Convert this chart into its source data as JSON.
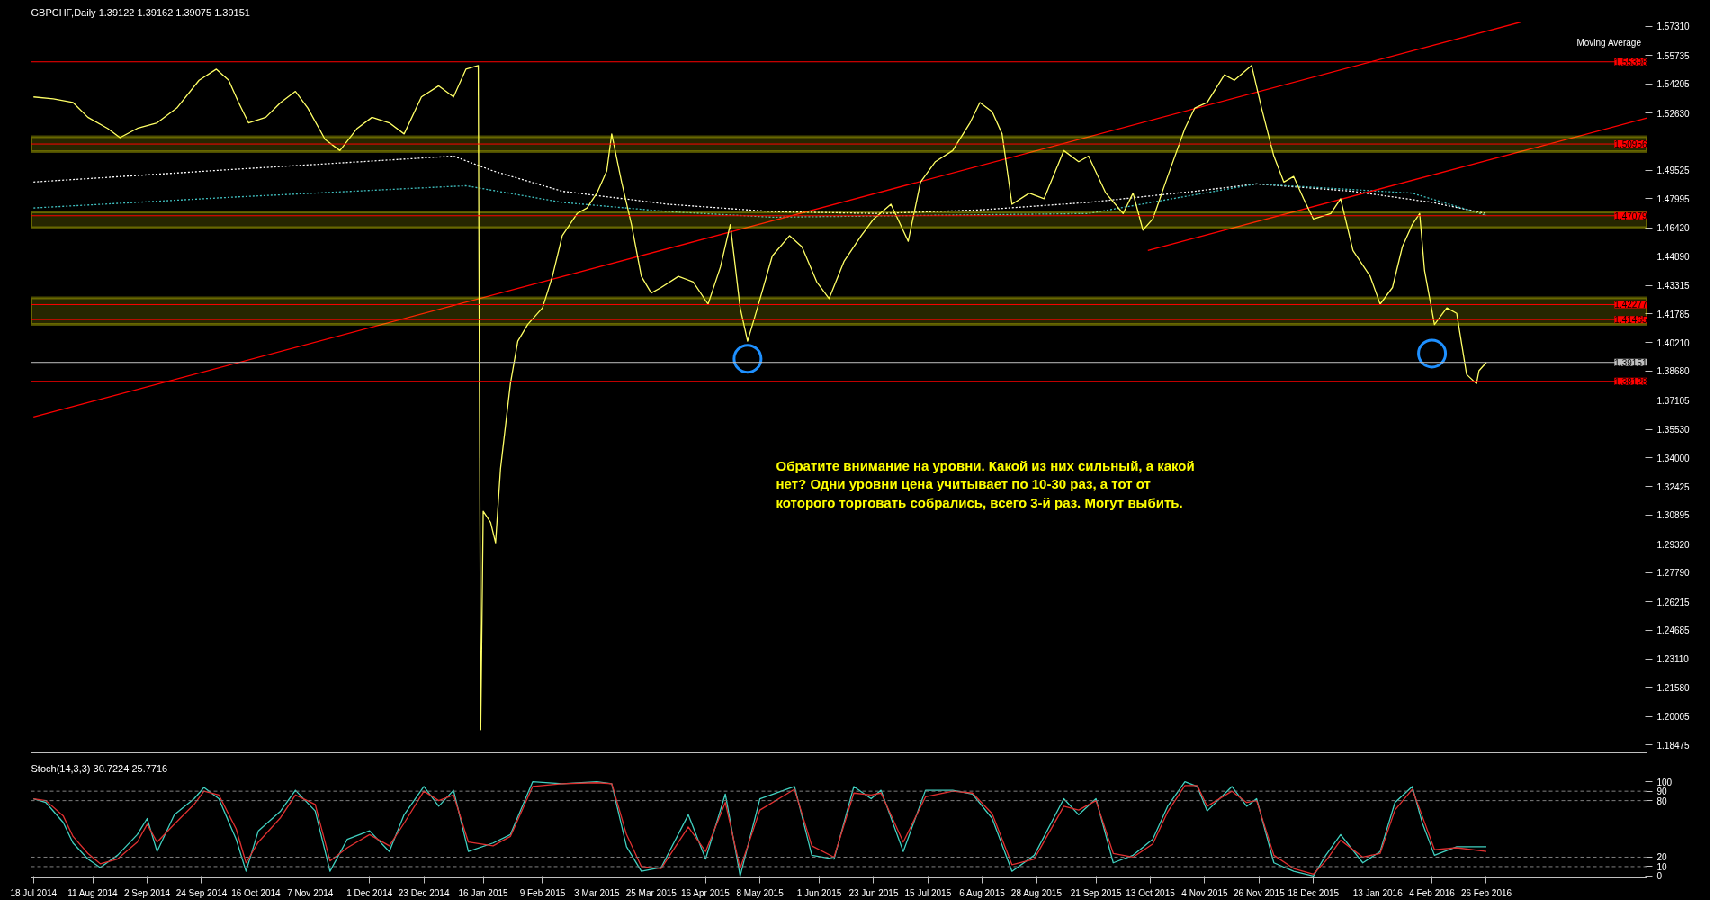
{
  "chart_data": [
    {
      "type": "line",
      "title": "GBPCHF,Daily  1.39122 1.39162 1.39075 1.39151",
      "tick_labels": "y",
      "grid": false,
      "xlim": [
        "2014-07-17",
        "2016-05-01"
      ],
      "ylim": [
        1.1805,
        1.5755
      ],
      "yticks": [
        {
          "value": 1.5731,
          "label": "1.57310"
        },
        {
          "value": 1.55735,
          "label": "1.55735"
        },
        {
          "value": 1.54205,
          "label": "1.54205"
        },
        {
          "value": 1.5263,
          "label": "1.52630"
        },
        {
          "value": 1.49525,
          "label": "1.49525"
        },
        {
          "value": 1.47995,
          "label": "1.47995"
        },
        {
          "value": 1.4642,
          "label": "1.46420"
        },
        {
          "value": 1.4489,
          "label": "1.44890"
        },
        {
          "value": 1.43315,
          "label": "1.43315"
        },
        {
          "value": 1.41785,
          "label": "1.41785"
        },
        {
          "value": 1.4021,
          "label": "1.40210"
        },
        {
          "value": 1.3868,
          "label": "1.38680"
        },
        {
          "value": 1.37105,
          "label": "1.37105"
        },
        {
          "value": 1.3553,
          "label": "1.35530"
        },
        {
          "value": 1.34,
          "label": "1.34000"
        },
        {
          "value": 1.32425,
          "label": "1.32425"
        },
        {
          "value": 1.30895,
          "label": "1.30895"
        },
        {
          "value": 1.2932,
          "label": "1.29320"
        },
        {
          "value": 1.2779,
          "label": "1.27790"
        },
        {
          "value": 1.26215,
          "label": "1.26215"
        },
        {
          "value": 1.24685,
          "label": "1.24685"
        },
        {
          "value": 1.2311,
          "label": "1.23110"
        },
        {
          "value": 1.2158,
          "label": "1.21580"
        },
        {
          "value": 1.20005,
          "label": "1.20005"
        },
        {
          "value": 1.18475,
          "label": "1.18475"
        }
      ],
      "series": [
        {
          "type": "line",
          "color": "#ffffff",
          "line_style": "dotted",
          "x": [
            "2014-07-18",
            "2014-10-09",
            "2015-01-04",
            "2015-01-20",
            "2015-02-17",
            "2015-04-01",
            "2015-05-13",
            "2015-06-26",
            "2015-08-06",
            "2015-09-18",
            "2015-10-31",
            "2015-11-25",
            "2016-01-03",
            "2016-02-04",
            "2016-02-26"
          ],
          "values": [
            1.489,
            1.496,
            1.503,
            1.495,
            1.484,
            1.477,
            1.473,
            1.472,
            1.474,
            1.478,
            1.484,
            1.488,
            1.484,
            1.478,
            1.472
          ]
        },
        {
          "type": "line",
          "color": "#40c0c0",
          "line_style": "dotted",
          "x": [
            "2014-07-18",
            "2014-10-09",
            "2015-01-09",
            "2015-02-17",
            "2015-04-01",
            "2015-05-13",
            "2015-09-18",
            "2015-11-25",
            "2016-01-27",
            "2016-02-26"
          ],
          "values": [
            1.475,
            1.481,
            1.487,
            1.478,
            1.473,
            1.47,
            1.472,
            1.488,
            1.483,
            1.471
          ]
        },
        {
          "type": "line",
          "color": "#ff0000",
          "line_style": "solid",
          "x": [
            "2014-07-18",
            "2016-03-11"
          ],
          "values": [
            1.362,
            1.5755
          ]
        },
        {
          "type": "line",
          "color": "#ff0000",
          "line_style": "solid",
          "x": [
            "2015-10-12",
            "2016-05-01"
          ],
          "values": [
            1.452,
            1.5236
          ]
        },
        {
          "type": "line",
          "color": "#ffff66",
          "line_style": "solid",
          "x": [
            "2014-07-18",
            "2014-07-26",
            "2014-08-03",
            "2014-08-09",
            "2014-08-17",
            "2014-08-22",
            "2014-08-29",
            "2014-09-06",
            "2014-09-14",
            "2014-09-23",
            "2014-09-30",
            "2014-10-05",
            "2014-10-09",
            "2014-10-13",
            "2014-10-20",
            "2014-10-26",
            "2014-11-01",
            "2014-11-06",
            "2014-11-13",
            "2014-11-19",
            "2014-11-26",
            "2014-12-02",
            "2014-12-09",
            "2014-12-15",
            "2014-12-22",
            "2014-12-29",
            "2015-01-04",
            "2015-01-09",
            "2015-01-14",
            "2015-01-15",
            "2015-01-16",
            "2015-01-19",
            "2015-01-21",
            "2015-01-23",
            "2015-01-27",
            "2015-01-30",
            "2015-02-03",
            "2015-02-09",
            "2015-02-13",
            "2015-02-17",
            "2015-02-23",
            "2015-02-27",
            "2015-03-03",
            "2015-03-07",
            "2015-03-09",
            "2015-03-13",
            "2015-03-17",
            "2015-03-21",
            "2015-03-25",
            "2015-03-29",
            "2015-04-05",
            "2015-04-11",
            "2015-04-17",
            "2015-04-22",
            "2015-04-26",
            "2015-04-30",
            "2015-05-03",
            "2015-05-07",
            "2015-05-13",
            "2015-05-20",
            "2015-05-25",
            "2015-05-31",
            "2015-06-05",
            "2015-06-11",
            "2015-06-18",
            "2015-06-23",
            "2015-06-30",
            "2015-07-07",
            "2015-07-12",
            "2015-07-18",
            "2015-07-25",
            "2015-08-01",
            "2015-08-05",
            "2015-08-10",
            "2015-08-14",
            "2015-08-18",
            "2015-08-25",
            "2015-08-31",
            "2015-09-08",
            "2015-09-14",
            "2015-09-18",
            "2015-09-25",
            "2015-10-02",
            "2015-10-06",
            "2015-10-10",
            "2015-10-14",
            "2015-10-20",
            "2015-10-27",
            "2015-10-31",
            "2015-11-05",
            "2015-11-12",
            "2015-11-16",
            "2015-11-23",
            "2015-11-27",
            "2015-12-02",
            "2015-12-06",
            "2015-12-10",
            "2015-12-14",
            "2015-12-18",
            "2015-12-25",
            "2015-12-29",
            "2016-01-03",
            "2016-01-10",
            "2016-01-14",
            "2016-01-19",
            "2016-01-23",
            "2016-01-27",
            "2016-01-30",
            "2016-02-01",
            "2016-02-05",
            "2016-02-10",
            "2016-02-14",
            "2016-02-18",
            "2016-02-22",
            "2016-02-23",
            "2016-02-26"
          ],
          "values": [
            1.535,
            1.534,
            1.532,
            1.524,
            1.518,
            1.513,
            1.518,
            1.521,
            1.529,
            1.544,
            1.55,
            1.544,
            1.532,
            1.521,
            1.524,
            1.532,
            1.538,
            1.529,
            1.512,
            1.506,
            1.518,
            1.524,
            1.521,
            1.515,
            1.535,
            1.541,
            1.535,
            1.55,
            1.552,
            1.193,
            1.311,
            1.305,
            1.294,
            1.334,
            1.38,
            1.403,
            1.412,
            1.421,
            1.438,
            1.46,
            1.472,
            1.475,
            1.483,
            1.495,
            1.515,
            1.489,
            1.466,
            1.438,
            1.429,
            1.432,
            1.438,
            1.435,
            1.423,
            1.443,
            1.466,
            1.421,
            1.403,
            1.421,
            1.449,
            1.46,
            1.454,
            1.435,
            1.426,
            1.446,
            1.46,
            1.469,
            1.477,
            1.457,
            1.489,
            1.5,
            1.506,
            1.521,
            1.532,
            1.527,
            1.515,
            1.477,
            1.483,
            1.48,
            1.506,
            1.5,
            1.503,
            1.483,
            1.472,
            1.483,
            1.463,
            1.469,
            1.492,
            1.518,
            1.529,
            1.532,
            1.547,
            1.544,
            1.552,
            1.529,
            1.503,
            1.489,
            1.492,
            1.48,
            1.469,
            1.472,
            1.48,
            1.452,
            1.438,
            1.423,
            1.432,
            1.454,
            1.466,
            1.472,
            1.441,
            1.412,
            1.421,
            1.418,
            1.385,
            1.38,
            1.387,
            1.3915
          ]
        },
        {
          "type": "scatter",
          "color": "#1e90ff",
          "marker": "circle",
          "x": [
            "2015-05-03",
            "2016-02-04"
          ],
          "values": [
            1.3935,
            1.3963
          ]
        }
      ],
      "ref_lines": [
        {
          "axis": "y",
          "value": 1.55398,
          "label": "1.55398",
          "color": "#ff0000"
        },
        {
          "axis": "y",
          "value": 1.50956,
          "label": "1.50956",
          "color": "#ff0000"
        },
        {
          "axis": "y",
          "value": 1.47079,
          "label": "1.47079",
          "color": "#ff0000"
        },
        {
          "axis": "y",
          "value": 1.42277,
          "label": "1.42277",
          "color": "#ff0000"
        },
        {
          "axis": "y",
          "value": 1.41465,
          "label": "1.41465",
          "color": "#ff0000"
        },
        {
          "axis": "y",
          "value": 1.38128,
          "label": "1.38128",
          "color": "#ff0000"
        },
        {
          "axis": "y",
          "value": 1.39151,
          "label": "1.39151",
          "color": "#c0c0c0"
        }
      ],
      "bands": [
        {
          "axis": "y",
          "from": 1.5055,
          "to": 1.5135,
          "color": "#ffff00"
        },
        {
          "axis": "y",
          "from": 1.4643,
          "to": 1.4729,
          "color": "#ffff00"
        },
        {
          "axis": "y",
          "from": 1.4121,
          "to": 1.4264,
          "color": "#ffff00"
        }
      ],
      "annotations": [
        "Обратите внимание на уровни. Какой из них сильный, а какой нет? Одни уровни цена учитывает по 10-30 раз, а тот от которого торговать собрались, всего 3-й раз. Могут выбить.",
        "Moving Average"
      ]
    },
    {
      "type": "line",
      "title": "Stoch(14,3,3) 30.7224 25.7716",
      "grid": false,
      "xlim": [
        "2014-07-17",
        "2016-05-01"
      ],
      "ylim": [
        -2,
        104
      ],
      "xticks": [
        {
          "value": "2014-07-18",
          "label": "18 Jul 2014"
        },
        {
          "value": "2014-08-11",
          "label": "11 Aug 2014"
        },
        {
          "value": "2014-09-02",
          "label": "2 Sep 2014"
        },
        {
          "value": "2014-09-24",
          "label": "24 Sep 2014"
        },
        {
          "value": "2014-10-16",
          "label": "16 Oct 2014"
        },
        {
          "value": "2014-11-07",
          "label": "7 Nov 2014"
        },
        {
          "value": "2014-12-01",
          "label": "1 Dec 2014"
        },
        {
          "value": "2014-12-23",
          "label": "23 Dec 2014"
        },
        {
          "value": "2015-01-16",
          "label": "16 Jan 2015"
        },
        {
          "value": "2015-02-09",
          "label": "9 Feb 2015"
        },
        {
          "value": "2015-03-03",
          "label": "3 Mar 2015"
        },
        {
          "value": "2015-03-25",
          "label": "25 Mar 2015"
        },
        {
          "value": "2015-04-16",
          "label": "16 Apr 2015"
        },
        {
          "value": "2015-05-08",
          "label": "8 May 2015"
        },
        {
          "value": "2015-06-01",
          "label": "1 Jun 2015"
        },
        {
          "value": "2015-06-23",
          "label": "23 Jun 2015"
        },
        {
          "value": "2015-07-15",
          "label": "15 Jul 2015"
        },
        {
          "value": "2015-08-06",
          "label": "6 Aug 2015"
        },
        {
          "value": "2015-08-28",
          "label": "28 Aug 2015"
        },
        {
          "value": "2015-09-21",
          "label": "21 Sep 2015"
        },
        {
          "value": "2015-10-13",
          "label": "13 Oct 2015"
        },
        {
          "value": "2015-11-04",
          "label": "4 Nov 2015"
        },
        {
          "value": "2015-11-26",
          "label": "26 Nov 2015"
        },
        {
          "value": "2015-12-18",
          "label": "18 Dec 2015"
        },
        {
          "value": "2016-01-13",
          "label": "13 Jan 2016"
        },
        {
          "value": "2016-02-04",
          "label": "4 Feb 2016"
        },
        {
          "value": "2016-02-26",
          "label": "26 Feb 2016"
        }
      ],
      "yticks": [
        0,
        10,
        20,
        80,
        90,
        100
      ],
      "x": [
        "2014-07-18",
        "2014-07-23",
        "2014-07-30",
        "2014-08-03",
        "2014-08-09",
        "2014-08-14",
        "2014-08-21",
        "2014-08-29",
        "2014-09-02",
        "2014-09-06",
        "2014-09-13",
        "2014-09-21",
        "2014-09-25",
        "2014-10-01",
        "2014-10-08",
        "2014-10-12",
        "2014-10-17",
        "2014-10-26",
        "2014-11-01",
        "2014-11-09",
        "2014-11-15",
        "2014-11-22",
        "2014-12-01",
        "2014-12-09",
        "2014-12-15",
        "2014-12-23",
        "2014-12-29",
        "2015-01-04",
        "2015-01-10",
        "2015-01-20",
        "2015-01-27",
        "2015-02-05",
        "2015-02-17",
        "2015-03-03",
        "2015-03-09",
        "2015-03-15",
        "2015-03-21",
        "2015-03-29",
        "2015-04-09",
        "2015-04-16",
        "2015-04-24",
        "2015-04-30",
        "2015-05-08",
        "2015-05-22",
        "2015-05-29",
        "2015-06-07",
        "2015-06-15",
        "2015-06-22",
        "2015-06-26",
        "2015-07-05",
        "2015-07-14",
        "2015-07-25",
        "2015-08-02",
        "2015-08-10",
        "2015-08-18",
        "2015-08-27",
        "2015-09-08",
        "2015-09-14",
        "2015-09-21",
        "2015-09-28",
        "2015-10-06",
        "2015-10-14",
        "2015-10-20",
        "2015-10-27",
        "2015-11-01",
        "2015-11-05",
        "2015-11-15",
        "2015-11-21",
        "2015-11-25",
        "2015-12-02",
        "2015-12-10",
        "2015-12-18",
        "2015-12-23",
        "2015-12-29",
        "2016-01-07",
        "2016-01-14",
        "2016-01-20",
        "2016-01-27",
        "2016-01-31",
        "2016-02-05",
        "2016-02-14",
        "2016-02-26"
      ],
      "series": [
        {
          "type": "line",
          "color": "#40d0c0",
          "line_style": "solid",
          "values": [
            82,
            78,
            57,
            35,
            18,
            9,
            22,
            44,
            61,
            26,
            65,
            82,
            94,
            82,
            39,
            5,
            48,
            69,
            91,
            69,
            5,
            39,
            48,
            26,
            65,
            95,
            74,
            91,
            26,
            35,
            44,
            100,
            98,
            100,
            98,
            31,
            5,
            9,
            65,
            18,
            87,
            0,
            82,
            95,
            22,
            18,
            95,
            82,
            91,
            26,
            91,
            91,
            87,
            61,
            5,
            22,
            82,
            65,
            82,
            14,
            22,
            39,
            74,
            100,
            95,
            69,
            95,
            74,
            82,
            14,
            5,
            0,
            22,
            44,
            14,
            26,
            78,
            95,
            57,
            22,
            31,
            31
          ]
        },
        {
          "type": "line",
          "color": "#e03030",
          "line_style": "solid",
          "values": [
            82,
            80,
            64,
            42,
            24,
            13,
            18,
            36,
            55,
            36,
            55,
            76,
            90,
            86,
            50,
            14,
            36,
            62,
            86,
            76,
            16,
            30,
            44,
            32,
            56,
            90,
            80,
            86,
            36,
            32,
            42,
            95,
            98,
            99,
            98,
            44,
            10,
            8,
            52,
            26,
            78,
            8,
            70,
            92,
            32,
            20,
            88,
            86,
            88,
            36,
            84,
            90,
            88,
            66,
            12,
            18,
            74,
            70,
            80,
            24,
            20,
            34,
            68,
            96,
            96,
            74,
            90,
            78,
            80,
            22,
            8,
            2,
            16,
            38,
            20,
            24,
            70,
            92,
            64,
            28,
            30,
            26
          ]
        }
      ],
      "ref_lines": [
        {
          "axis": "y",
          "value": 10,
          "color": "#808080",
          "line_style": "dashed"
        },
        {
          "axis": "y",
          "value": 20,
          "color": "#808080",
          "line_style": "dashed"
        },
        {
          "axis": "y",
          "value": 80,
          "color": "#808080",
          "line_style": "dashed"
        },
        {
          "axis": "y",
          "value": 90,
          "color": "#808080",
          "line_style": "dashed"
        }
      ]
    }
  ]
}
